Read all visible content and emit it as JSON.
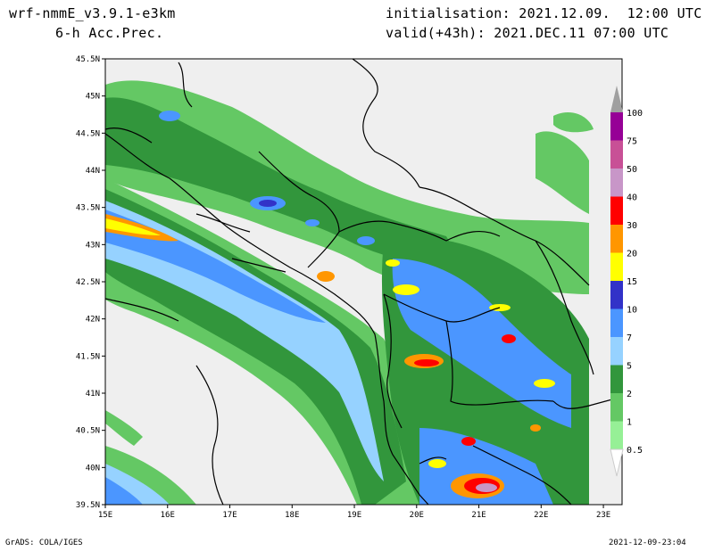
{
  "header": {
    "model": "wrf-nmmE_v3.9.1-e3km",
    "field": "6-h Acc.Prec.",
    "init": "initialisation: 2021.12.09.  12:00 UTC",
    "valid": "valid(+43h): 2021.DEC.11 07:00 UTC"
  },
  "map": {
    "lat_labels": [
      "45.5N",
      "45N",
      "44.5N",
      "44N",
      "43.5N",
      "43N",
      "42.5N",
      "42N",
      "41.5N",
      "41N",
      "40.5N",
      "40N",
      "39.5N"
    ],
    "lon_labels": [
      "15E",
      "16E",
      "17E",
      "18E",
      "19E",
      "20E",
      "21E",
      "22E",
      "23E"
    ],
    "extent": {
      "lon_min": 15,
      "lon_max": 23.3,
      "lat_min": 39.5,
      "lat_max": 45.5
    }
  },
  "colorbar": {
    "labels": [
      "100",
      "75",
      "50",
      "40",
      "30",
      "20",
      "15",
      "10",
      "7",
      "5",
      "2",
      "1",
      "0.5"
    ],
    "colors": [
      "#960096",
      "#c85096",
      "#c896c8",
      "#ff0000",
      "#ff9600",
      "#ffff00",
      "#3232c8",
      "#4b96ff",
      "#96d2ff",
      "#32963c",
      "#64c864",
      "#96f096",
      "#ffffff",
      "#a0a0a0"
    ]
  },
  "footer": {
    "left": "GrADS: COLA/IGES",
    "right": "2021-12-09-23:04"
  }
}
